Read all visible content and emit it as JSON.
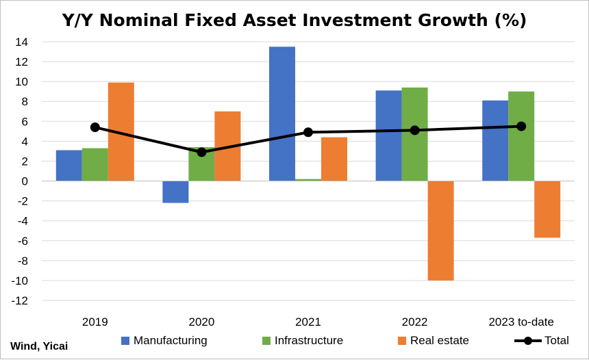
{
  "chart_data": {
    "type": "bar",
    "title": "Y/Y Nominal Fixed Asset Investment Growth (%)",
    "categories": [
      "2019",
      "2020",
      "2021",
      "2022",
      "2023 to-date"
    ],
    "series": [
      {
        "name": "Manufacturing",
        "type": "bar",
        "color": "#4472c4",
        "values": [
          3.1,
          -2.2,
          13.5,
          9.1,
          8.1
        ]
      },
      {
        "name": "Infrastructure",
        "type": "bar",
        "color": "#70ad47",
        "values": [
          3.3,
          3.4,
          0.2,
          9.4,
          9.0
        ]
      },
      {
        "name": "Real estate",
        "type": "bar",
        "color": "#ed7d31",
        "values": [
          9.9,
          7.0,
          4.4,
          -10.0,
          -5.7
        ]
      },
      {
        "name": "Total",
        "type": "line",
        "color": "#000000",
        "values": [
          5.4,
          2.9,
          4.9,
          5.1,
          5.5
        ]
      }
    ],
    "ylim": [
      -12,
      14
    ],
    "yticks": [
      14,
      12,
      10,
      8,
      6,
      4,
      2,
      0,
      -2,
      -4,
      -6,
      -8,
      -10,
      -12
    ],
    "ytick_labels": [
      "14",
      "12",
      "10",
      "8",
      "6",
      "4",
      "2",
      "0",
      "-2",
      "-4",
      "-6",
      "-8",
      "-10",
      "-12"
    ],
    "grid": true,
    "legend_position": "bottom",
    "xlabel": "",
    "ylabel": ""
  },
  "source": "Wind, Yicai"
}
